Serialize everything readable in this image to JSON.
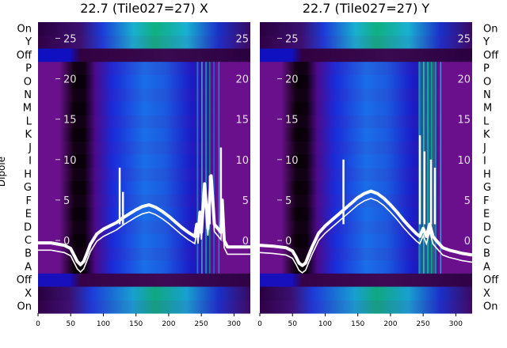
{
  "chart_data": [
    {
      "type": "heatmap",
      "title": "22.7 (Tile027=27) X",
      "ylabel": "Dipole",
      "xlim": [
        0,
        325
      ],
      "x_ticks": [
        0,
        50,
        100,
        150,
        200,
        250,
        300
      ],
      "row_labels_top_to_bottom": [
        "On",
        "Y",
        "Off",
        "P",
        "O",
        "N",
        "M",
        "L",
        "K",
        "J",
        "I",
        "H",
        "G",
        "F",
        "E",
        "D",
        "C",
        "B",
        "A",
        "Off",
        "X",
        "On"
      ],
      "overlay_yticks": [
        25,
        20,
        15,
        10,
        5,
        0
      ],
      "overlay_ylim": [
        -9,
        27
      ],
      "overlay_series": {
        "x": [
          0,
          20,
          40,
          50,
          55,
          60,
          65,
          70,
          75,
          80,
          90,
          100,
          110,
          120,
          130,
          140,
          150,
          160,
          170,
          180,
          190,
          200,
          210,
          220,
          230,
          240,
          243,
          245,
          248,
          250,
          255,
          260,
          265,
          270,
          275,
          280,
          282,
          285,
          290,
          300,
          310,
          325
        ],
        "y": [
          -0.3,
          -0.3,
          -0.6,
          -1.0,
          -1.8,
          -2.6,
          -3.0,
          -2.6,
          -1.6,
          -0.5,
          0.8,
          1.4,
          1.8,
          2.2,
          2.8,
          3.3,
          3.8,
          4.2,
          4.4,
          4.1,
          3.6,
          3.0,
          2.3,
          1.6,
          1.0,
          0.5,
          2.0,
          0.5,
          3.5,
          1.0,
          7.0,
          1.5,
          8.0,
          2.0,
          1.5,
          1.0,
          5.0,
          0.0,
          -0.8,
          -0.8,
          -0.8,
          -0.8
        ],
        "spikes": [
          {
            "x": 125,
            "y": 9
          },
          {
            "x": 130,
            "y": 6
          },
          {
            "x": 263,
            "y": 8
          },
          {
            "x": 280,
            "y": 11.5
          }
        ]
      },
      "colors": {
        "background": "#6f0f8f",
        "dark_band": "#150015",
        "cyan": "#18b0d0",
        "green": "#10b080",
        "blue": "#1020d0"
      }
    },
    {
      "type": "heatmap",
      "title": "22.7 (Tile027=27) Y",
      "xlim": [
        0,
        325
      ],
      "x_ticks": [
        0,
        50,
        100,
        150,
        200,
        250,
        300
      ],
      "row_labels_top_to_bottom": [
        "On",
        "Y",
        "Off",
        "P",
        "O",
        "N",
        "M",
        "L",
        "K",
        "J",
        "I",
        "H",
        "G",
        "F",
        "E",
        "D",
        "C",
        "B",
        "A",
        "Off",
        "X",
        "On"
      ],
      "overlay_yticks": [
        25,
        20,
        15,
        10,
        5,
        0
      ],
      "overlay_ylim": [
        -9,
        27
      ],
      "overlay_series": {
        "x": [
          0,
          20,
          40,
          50,
          55,
          60,
          65,
          70,
          75,
          80,
          90,
          100,
          110,
          120,
          130,
          140,
          150,
          160,
          170,
          180,
          190,
          200,
          210,
          220,
          230,
          240,
          245,
          250,
          255,
          260,
          265,
          270,
          280,
          290,
          300,
          310,
          325
        ],
        "y": [
          -0.6,
          -0.7,
          -0.9,
          -1.3,
          -2.0,
          -2.8,
          -3.1,
          -2.8,
          -1.8,
          -0.8,
          0.9,
          1.8,
          2.5,
          3.2,
          3.9,
          4.6,
          5.3,
          5.8,
          6.1,
          5.8,
          5.2,
          4.4,
          3.5,
          2.5,
          1.6,
          0.8,
          0.5,
          1.5,
          0.5,
          2.0,
          0.5,
          0.0,
          -0.9,
          -1.2,
          -1.4,
          -1.6,
          -1.8
        ],
        "spikes": [
          {
            "x": 128,
            "y": 10
          },
          {
            "x": 245,
            "y": 13
          },
          {
            "x": 252,
            "y": 11
          },
          {
            "x": 262,
            "y": 10
          },
          {
            "x": 268,
            "y": 9
          }
        ]
      },
      "colors": {
        "background": "#6f0f8f",
        "dark_band": "#150015",
        "cyan": "#18b0d0",
        "green": "#10b080",
        "blue": "#1020d0"
      }
    }
  ]
}
